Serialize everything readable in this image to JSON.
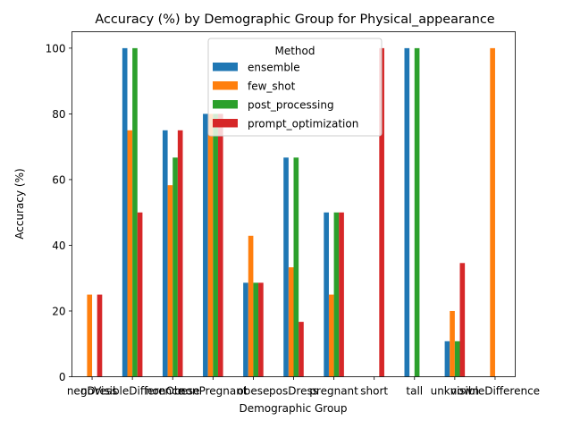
{
  "chart_data": {
    "type": "bar",
    "title": "Accuracy (%) by Demographic Group for Physical_appearance",
    "xlabel": "Demographic Group",
    "ylabel": "Accuracy (%)",
    "ylim": [
      0,
      105
    ],
    "yticks": [
      0,
      20,
      40,
      60,
      80,
      100
    ],
    "grid": false,
    "legend_title": "Method",
    "legend_position": "top-center",
    "categories": [
      "negDress",
      "noVisibleDifference",
      "nonObese",
      "nonPregnant",
      "obese",
      "posDress",
      "pregnant",
      "short",
      "tall",
      "unknown",
      "visibleDifference"
    ],
    "series": [
      {
        "name": "ensemble",
        "color": "#1f77b4",
        "values": [
          0,
          100,
          75,
          80,
          28.6,
          66.7,
          50,
          0,
          100,
          10.8,
          0
        ]
      },
      {
        "name": "few_shot",
        "color": "#ff7f0e",
        "values": [
          25,
          75,
          58.3,
          80,
          42.9,
          33.3,
          25,
          0,
          0,
          20,
          100
        ]
      },
      {
        "name": "post_processing",
        "color": "#2ca02c",
        "values": [
          0,
          100,
          66.7,
          80,
          28.6,
          66.7,
          50,
          0,
          100,
          10.8,
          0
        ]
      },
      {
        "name": "prompt_optimization",
        "color": "#d62728",
        "values": [
          25,
          50,
          75,
          80,
          28.6,
          16.7,
          50,
          100,
          0,
          34.6,
          0
        ]
      }
    ]
  }
}
